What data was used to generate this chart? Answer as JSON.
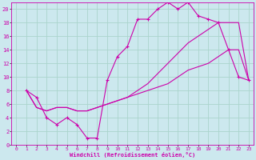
{
  "xlabel": "Windchill (Refroidissement éolien,°C)",
  "background_color": "#cce8ee",
  "grid_color": "#aad4cc",
  "line_color": "#cc00aa",
  "xlim": [
    -0.5,
    23.5
  ],
  "ylim": [
    0,
    21
  ],
  "x_ticks": [
    0,
    1,
    2,
    3,
    4,
    5,
    6,
    7,
    8,
    9,
    10,
    11,
    12,
    13,
    14,
    15,
    16,
    17,
    18,
    19,
    20,
    21,
    22,
    23
  ],
  "y_ticks": [
    0,
    2,
    4,
    6,
    8,
    10,
    12,
    14,
    16,
    18,
    20
  ],
  "line1_x": [
    1,
    2,
    3,
    4,
    5,
    6,
    7,
    8,
    9,
    10,
    11,
    12,
    13,
    14,
    15,
    16,
    17,
    18,
    19,
    20,
    21,
    22,
    23
  ],
  "line1_y": [
    8,
    7,
    4,
    3,
    4,
    3,
    1,
    1,
    9.5,
    13,
    14.5,
    18.5,
    18.5,
    20,
    21,
    20,
    21,
    19,
    18.5,
    18,
    14,
    10,
    9.5
  ],
  "line2_x": [
    1,
    2,
    3,
    4,
    5,
    6,
    7,
    8,
    9,
    10,
    11,
    12,
    13,
    14,
    15,
    16,
    17,
    18,
    19,
    20,
    21,
    22,
    23
  ],
  "line2_y": [
    8,
    5.5,
    5,
    5.5,
    5.5,
    5,
    5,
    5.5,
    6,
    6.5,
    7,
    7.5,
    8,
    8.5,
    9,
    10,
    11,
    11.5,
    12,
    13,
    14,
    14,
    9.5
  ],
  "line3_x": [
    1,
    2,
    3,
    4,
    5,
    6,
    7,
    8,
    9,
    10,
    11,
    12,
    13,
    14,
    15,
    16,
    17,
    18,
    19,
    20,
    21,
    22,
    23
  ],
  "line3_y": [
    8,
    5.5,
    5,
    5.5,
    5.5,
    5,
    5,
    5.5,
    6,
    6.5,
    7,
    8,
    9,
    10.5,
    12,
    13.5,
    15,
    16,
    17,
    18,
    18,
    18,
    9.5
  ]
}
